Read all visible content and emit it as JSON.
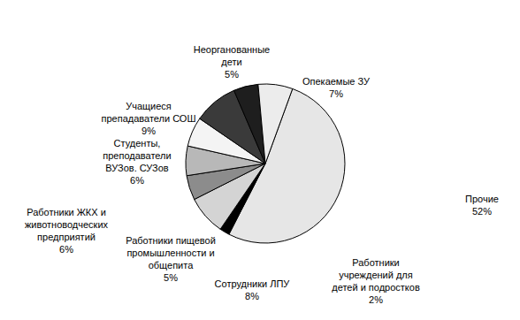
{
  "chart_data": {
    "type": "pie",
    "categories": [
      "Прочие",
      "Работники учреждений для детей и подростков",
      "Сотрудники ЛПУ",
      "Работники пищевой промышленности и общепита",
      "Работники ЖКХ и животноводческих предприятий",
      "Студенты, преподаватели ВУЗов. СУЗов",
      "Учащиеся препадаватели СОШ",
      "Неорганованные дети",
      "Опекаемые ЗУ"
    ],
    "values": [
      52,
      2,
      8,
      5,
      6,
      6,
      9,
      5,
      7
    ],
    "value_labels": [
      "52%",
      "2%",
      "8%",
      "5%",
      "6%",
      "6%",
      "9%",
      "5%",
      "7%"
    ],
    "colors": [
      "#e6e6e6",
      "#000000",
      "#d4d4d4",
      "#8c8c8c",
      "#b8b8b8",
      "#f4f4f4",
      "#3a3a3a",
      "#1e1e1e",
      "#ececec"
    ]
  }
}
